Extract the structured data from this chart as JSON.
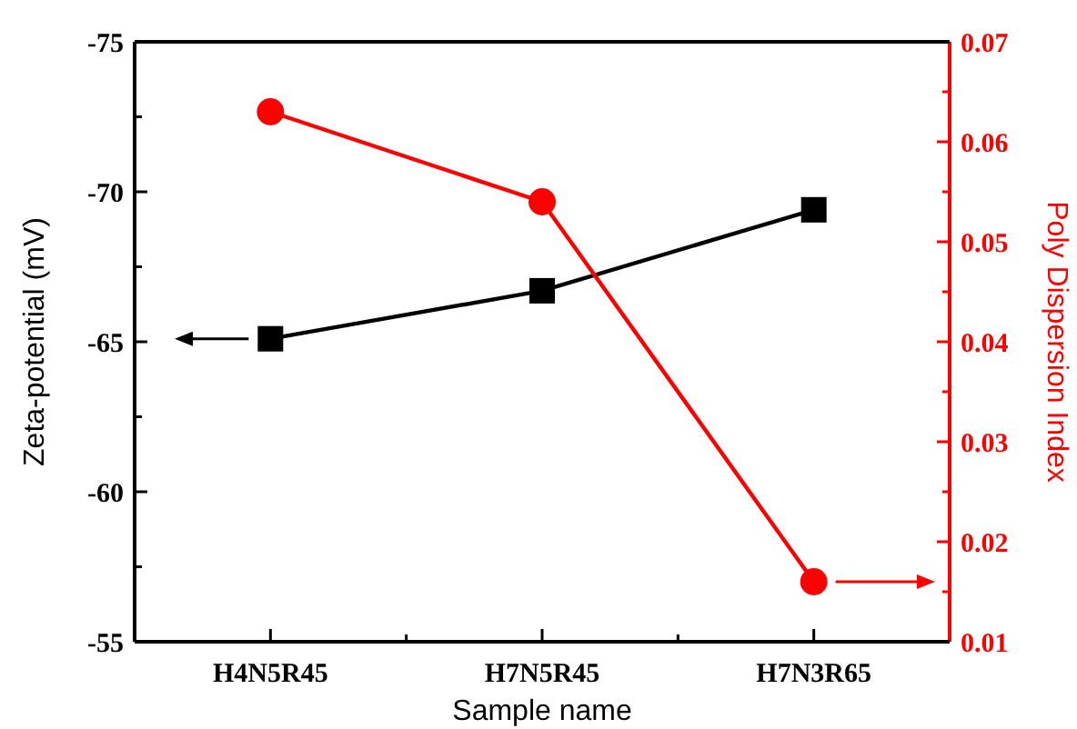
{
  "chart_data": {
    "type": "line",
    "xlabel": "Sample name",
    "ylabel": "Zeta-potential (mV)",
    "y2label": "Poly Dispersion Index",
    "categories": [
      "H4N5R45",
      "H7N5R45",
      "H7N3R65"
    ],
    "ylim": [
      -55,
      -75
    ],
    "yticks": [
      -55,
      {
        "value": -57.5,
        "label": null
      },
      -60,
      {
        "value": -62.5,
        "label": null
      },
      -65,
      {
        "value": -67.5,
        "label": null
      },
      -70,
      {
        "value": -72.5,
        "label": null
      },
      -75
    ],
    "y2lim": [
      0.01,
      0.07
    ],
    "y2ticks": [
      0.01,
      {
        "value": 0.015,
        "label": null
      },
      0.02,
      {
        "value": 0.025,
        "label": null
      },
      0.03,
      {
        "value": 0.035,
        "label": null
      },
      0.04,
      {
        "value": 0.045,
        "label": null
      },
      0.05,
      {
        "value": 0.055,
        "label": null
      },
      0.06,
      {
        "value": 0.065,
        "label": null
      },
      0.07
    ],
    "series": [
      {
        "color": "#000000",
        "marker": "square",
        "values": [
          -65.1,
          -66.7,
          -69.4
        ]
      },
      {
        "color": "#ff0000",
        "marker": "circle",
        "axis": "y2",
        "values": [
          0.063,
          0.054,
          0.016
        ]
      }
    ],
    "grid": false
  }
}
